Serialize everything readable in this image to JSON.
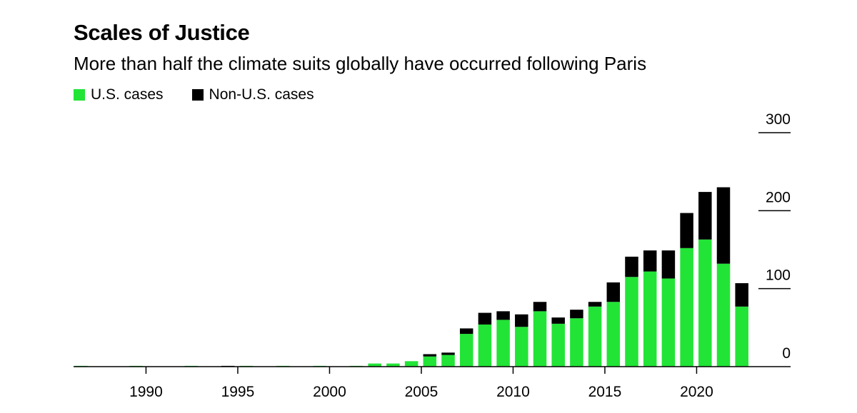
{
  "title": "Scales of Justice",
  "subtitle": "More than half the climate suits globally have occurred following Paris",
  "colors": {
    "us": "#22e436",
    "non_us": "#000000"
  },
  "chart_data": {
    "type": "bar",
    "stacked": true,
    "legend_placement": "top-left",
    "categories": [
      "1986",
      "1987",
      "1988",
      "1989",
      "1990",
      "1991",
      "1992",
      "1993",
      "1994",
      "1995",
      "1996",
      "1997",
      "1998",
      "1999",
      "2000",
      "2001",
      "2002",
      "2003",
      "2004",
      "2005",
      "2006",
      "2007",
      "2008",
      "2009",
      "2010",
      "2011",
      "2012",
      "2013",
      "2014",
      "2015",
      "2016",
      "2017",
      "2018",
      "2019",
      "2020",
      "2021",
      "2022"
    ],
    "series": [
      {
        "name": "U.S. cases",
        "values": [
          1,
          0,
          0,
          1,
          0,
          0,
          1,
          0,
          0,
          1,
          0,
          1,
          0,
          1,
          0,
          1,
          4,
          4,
          7,
          13,
          15,
          42,
          54,
          60,
          51,
          71,
          55,
          62,
          77,
          83,
          115,
          122,
          113,
          152,
          163,
          132,
          77
        ]
      },
      {
        "name": "Non-U.S. cases",
        "values": [
          0,
          0,
          0,
          0,
          0,
          0,
          0,
          0,
          1,
          0,
          0,
          0,
          0,
          0,
          0,
          0,
          0,
          0,
          0,
          3,
          3,
          7,
          15,
          11,
          16,
          12,
          8,
          11,
          6,
          25,
          26,
          27,
          36,
          45,
          61,
          98,
          30
        ]
      }
    ],
    "x_ticks": [
      "1990",
      "1995",
      "2000",
      "2005",
      "2010",
      "2015",
      "2020"
    ],
    "y_ticks": [
      "0",
      "100",
      "200",
      "300"
    ],
    "ylim": [
      0,
      300
    ],
    "grid": false
  }
}
